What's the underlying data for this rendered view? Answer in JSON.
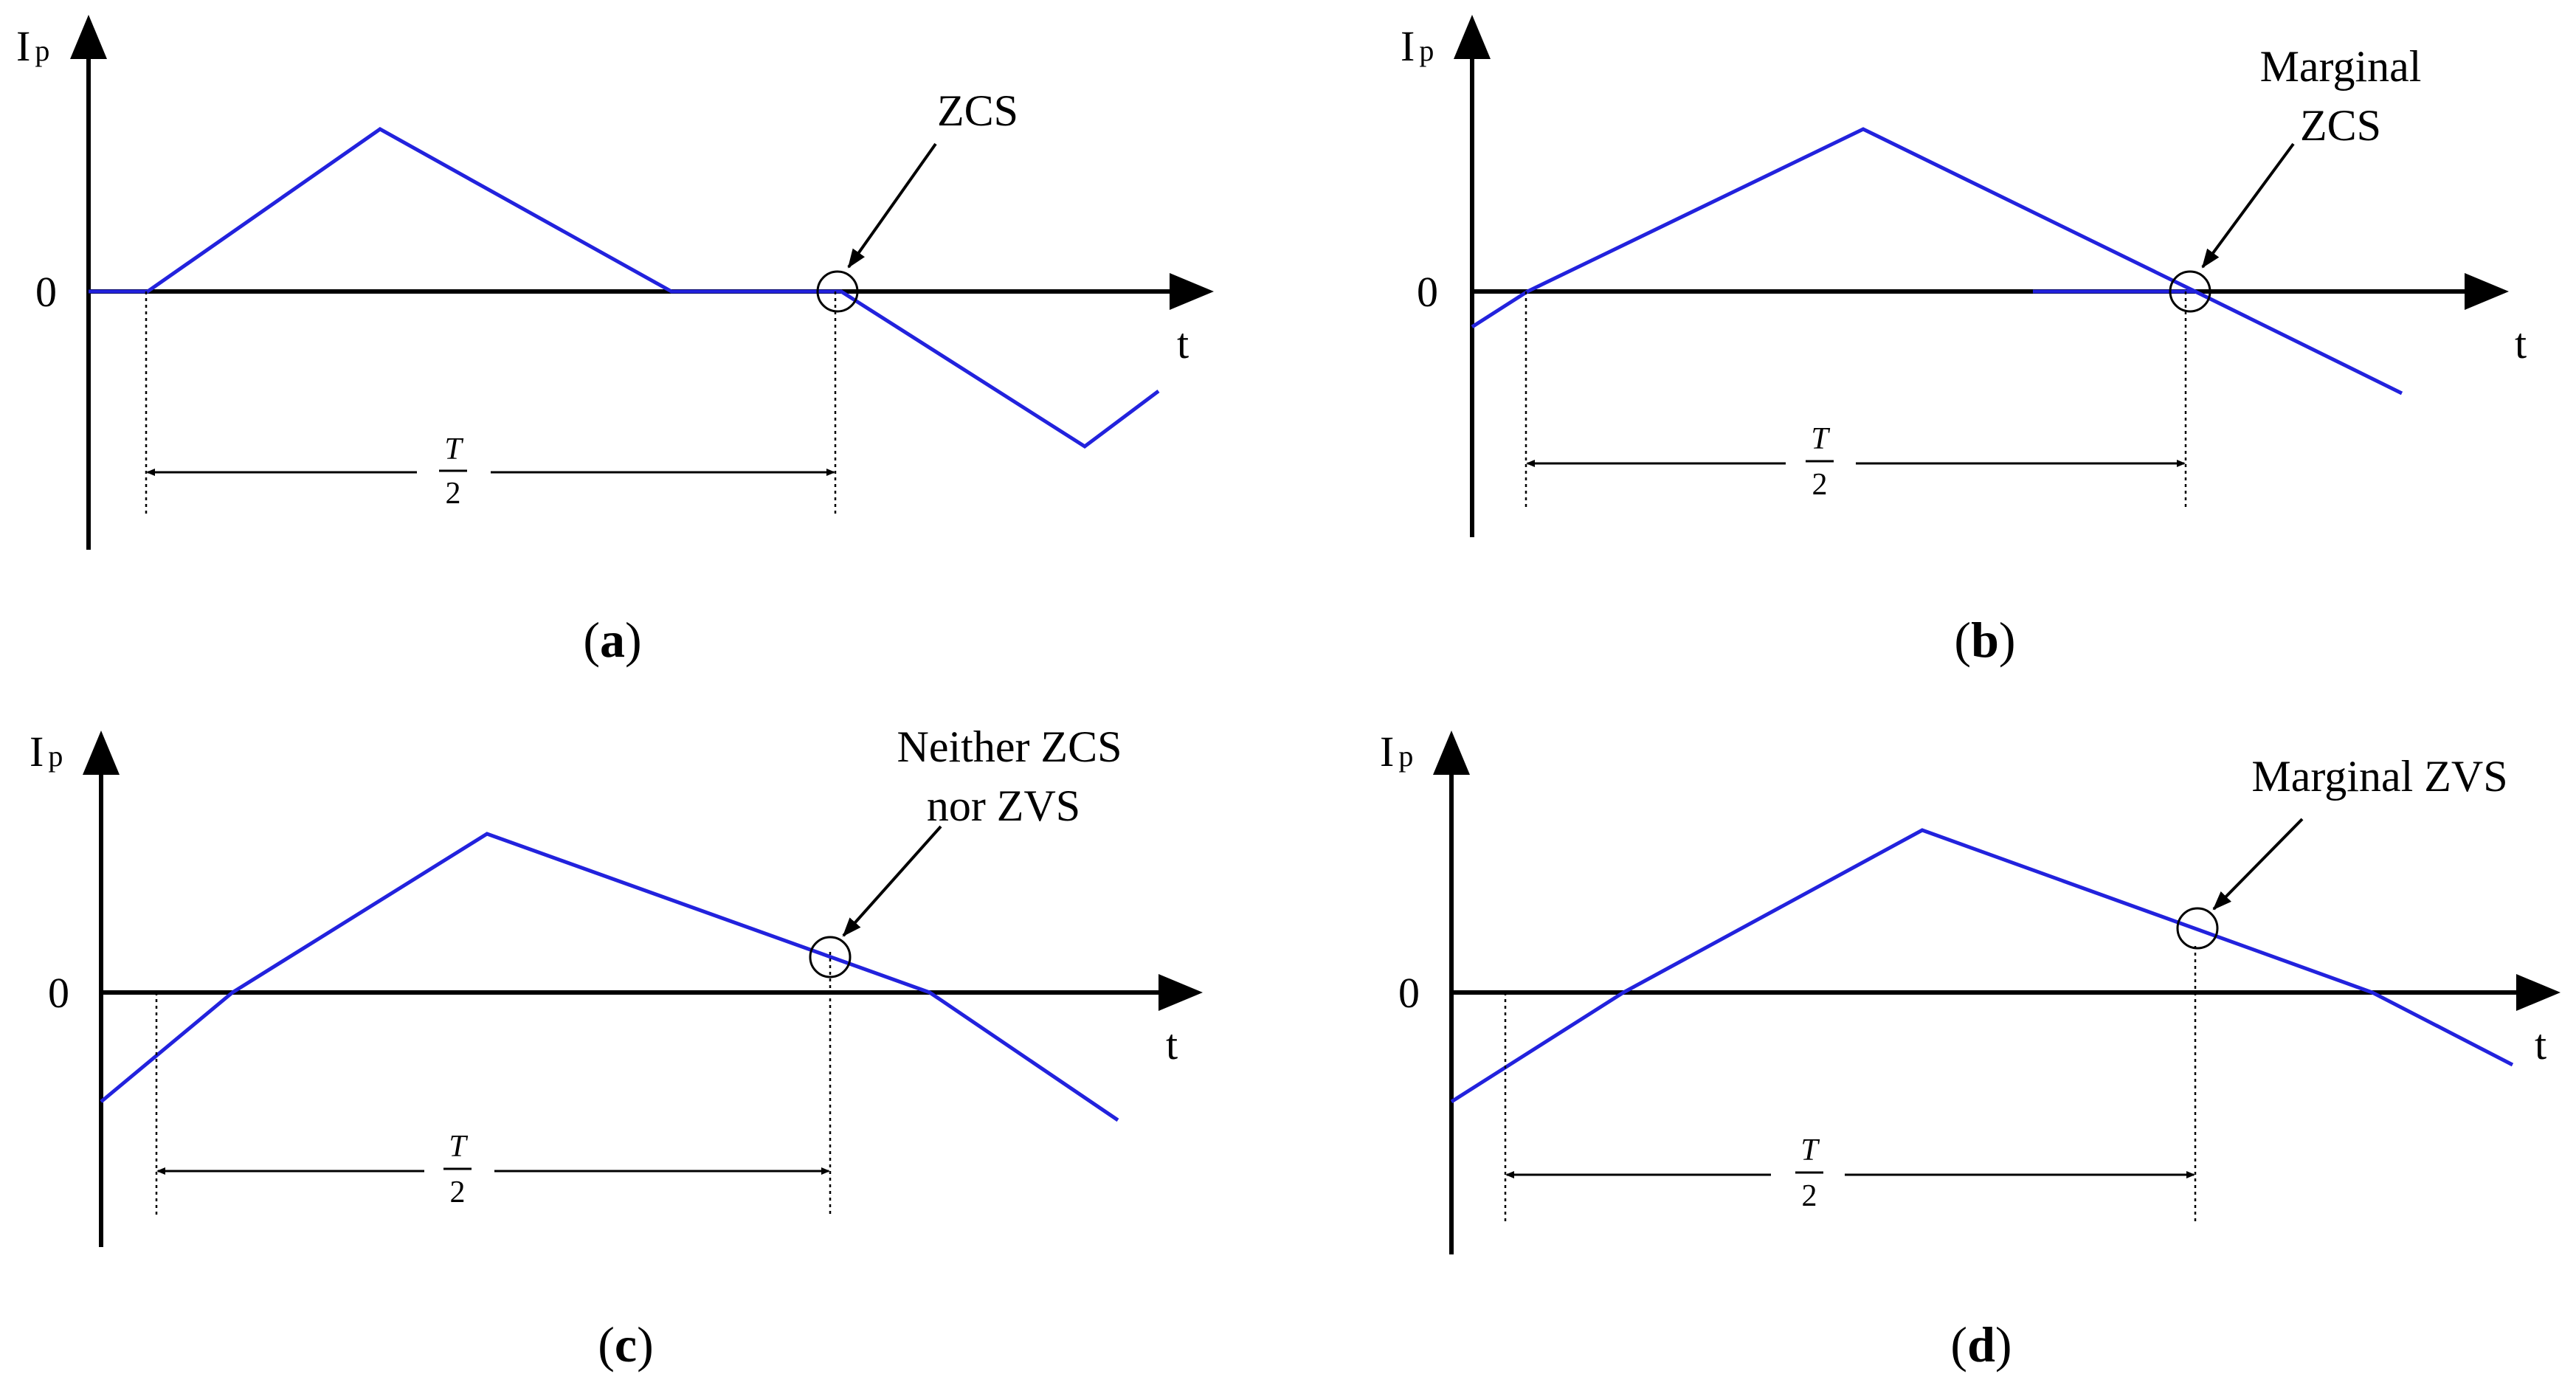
{
  "colors": {
    "waveform": "#2222dd",
    "axis": "#000000",
    "guide": "#000000"
  },
  "panels": [
    {
      "id": "a",
      "caption_letter": "a",
      "y_axis_label": "I",
      "y_axis_subscript": "p",
      "x_axis_label": "t",
      "zero_label": "0",
      "interval_numerator": "T",
      "interval_denominator": "2",
      "annotation_lines": [
        "ZCS"
      ]
    },
    {
      "id": "b",
      "caption_letter": "b",
      "y_axis_label": "I",
      "y_axis_subscript": "p",
      "x_axis_label": "t",
      "zero_label": "0",
      "interval_numerator": "T",
      "interval_denominator": "2",
      "annotation_lines": [
        "Marginal",
        "ZCS"
      ]
    },
    {
      "id": "c",
      "caption_letter": "c",
      "y_axis_label": "I",
      "y_axis_subscript": "p",
      "x_axis_label": "t",
      "zero_label": "0",
      "interval_numerator": "T",
      "interval_denominator": "2",
      "annotation_lines": [
        "Neither ZCS",
        "nor ZVS"
      ]
    },
    {
      "id": "d",
      "caption_letter": "d",
      "y_axis_label": "I",
      "y_axis_subscript": "p",
      "x_axis_label": "t",
      "zero_label": "0",
      "interval_numerator": "T",
      "interval_denominator": "2",
      "annotation_lines": [
        "Marginal ZVS"
      ]
    }
  ]
}
